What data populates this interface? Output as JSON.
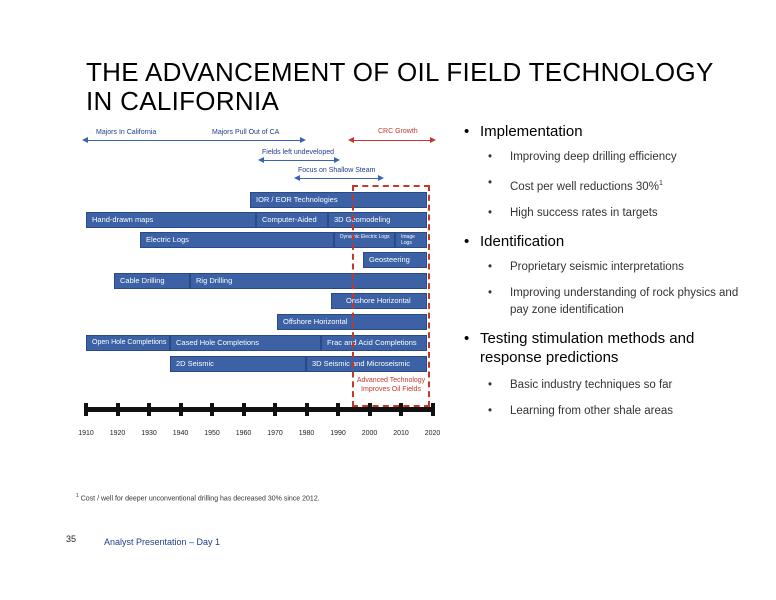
{
  "title": "THE ADVANCEMENT OF OIL FIELD TECHNOLOGY IN CALIFORNIA",
  "arrows": {
    "majors_in_california": "Majors In California",
    "majors_pull_out": "Majors Pull Out of CA",
    "crc_growth": "CRC Growth",
    "fields_left_undeveloped": "Fields left undeveloped",
    "focus_on_shallow_steam": "Focus on Shallow Steam"
  },
  "bars": {
    "ior_eor": "IOR / EOR Technologies",
    "hand_drawn_maps": "Hand-drawn maps",
    "computer_aided": "Computer-Aided",
    "geomodeling_3d": "3D Geomodeling",
    "electric_logs": "Electric Logs",
    "dynamic_electric_logs": "Dynamic Electric Logs",
    "image_logs": "Image Logs",
    "geosteering": "Geosteering",
    "cable_drilling": "Cable Drilling",
    "rig_drilling": "Rig Drilling",
    "onshore_horizontal": "Onshore Horizontal",
    "offshore_horizontal": "Offshore Horizontal",
    "open_hole": "Open Hole Completions",
    "cased_hole": "Cased Hole Completions",
    "frac_acid": "Frac and Acid Completions",
    "seismic_2d": "2D Seismic",
    "seismic_3d": "3D Seismic and Microseismic"
  },
  "advanced_technology": "Advanced Technology Improves Oil Fields",
  "timeline_years": [
    "1910",
    "1920",
    "1930",
    "1940",
    "1950",
    "1960",
    "1970",
    "1980",
    "1990",
    "2000",
    "2010",
    "2020"
  ],
  "bullets": {
    "implementation": {
      "heading": "Implementation",
      "items": [
        "Improving deep drilling efficiency",
        "Cost per well reductions 30%",
        "High success rates in targets"
      ],
      "footnote_marker": "1"
    },
    "identification": {
      "heading": "Identification",
      "items": [
        "Proprietary seismic interpretations",
        "Improving understanding of rock physics and pay zone identification"
      ]
    },
    "testing": {
      "heading": "Testing stimulation methods and response predictions",
      "items": [
        "Basic industry techniques so far",
        "Learning from other shale areas"
      ]
    }
  },
  "footnote": {
    "marker": "1",
    "text": "Cost / well for deeper unconventional drilling has decreased 30% since 2012."
  },
  "page_number": "35",
  "footer": "Analyst Presentation – Day 1",
  "colors": {
    "bar_fill": "#3c61a4",
    "arrow_blue": "#3a63b5",
    "accent_red": "#c0392b"
  }
}
